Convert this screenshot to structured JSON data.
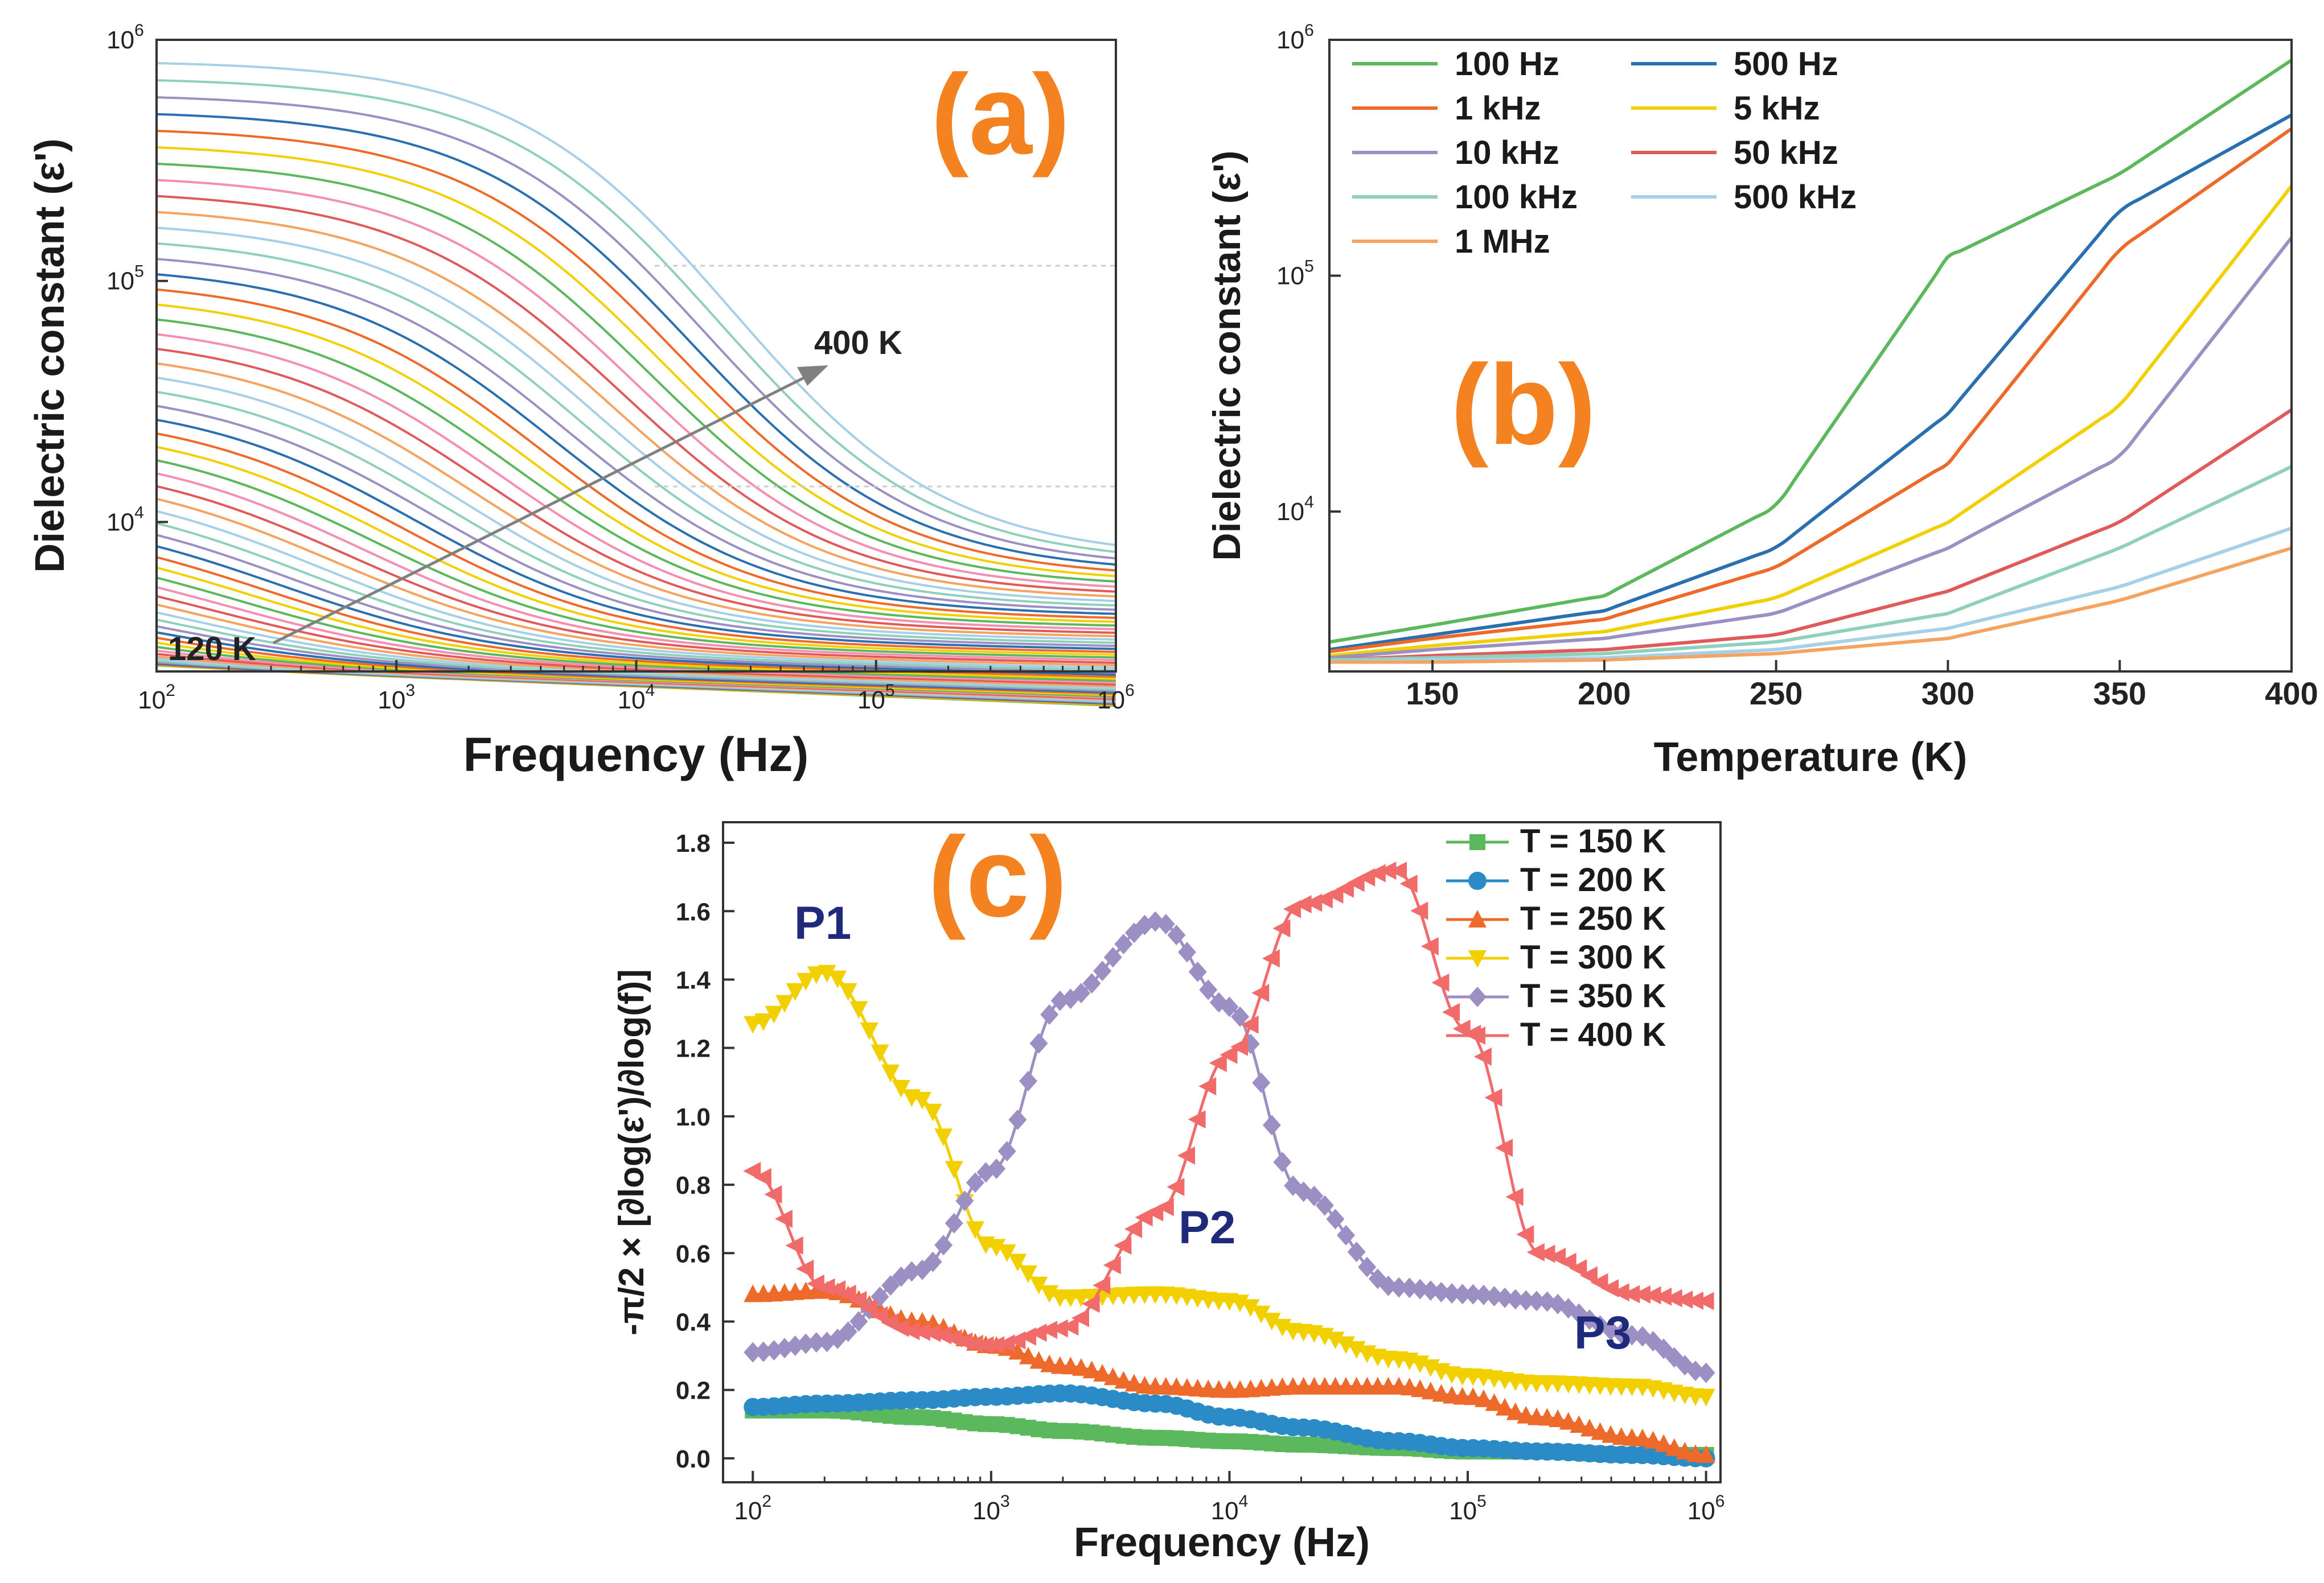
{
  "chart_data": [
    {
      "panel": "(a)",
      "type": "line",
      "xlabel": "Frequency (Hz)",
      "ylabel": "Dielectric constant (ε')",
      "xscale": "log",
      "yscale": "log",
      "xlim": [
        100,
        1000000
      ],
      "ylim": [
        2400,
        1000000
      ],
      "x_ticks": [
        "10",
        "10",
        "10",
        "10",
        "10"
      ],
      "x_tick_exponents": [
        "2",
        "3",
        "4",
        "5",
        "6"
      ],
      "y_ticks": [
        "10",
        "10",
        "10"
      ],
      "y_tick_exponents": [
        "4",
        "5",
        "6"
      ],
      "temperature_range_K": [
        120,
        400
      ],
      "curve_count": 57,
      "low_temp_label": "120 K",
      "high_temp_label": "400 K",
      "arrow_direction": "increasing temperature",
      "series_envelope": {
        "lowest_curve_120K": {
          "eps_at_100Hz": 2800,
          "eps_at_1MHz": 2500
        },
        "highest_curve_400K": {
          "eps_at_100Hz": 820000,
          "eps_at_1MHz": 7000,
          "relaxation_freq_Hz": 25000
        }
      }
    },
    {
      "panel": "(b)",
      "type": "line",
      "xlabel": "Temperature (K)",
      "ylabel": "Dielectric constant (ε')",
      "xscale": "linear",
      "yscale": "log",
      "xlim": [
        120,
        400
      ],
      "ylim": [
        2100,
        1000000
      ],
      "x_ticks": [
        "150",
        "200",
        "250",
        "300",
        "350",
        "400"
      ],
      "y_ticks": [
        "10",
        "10",
        "10"
      ],
      "y_tick_exponents": [
        "4",
        "5",
        "6"
      ],
      "legend_position": "top-left",
      "x": [
        120,
        150,
        200,
        250,
        300,
        350,
        400
      ],
      "series": [
        {
          "name": "100 Hz",
          "color": "#5cb85c",
          "values": [
            2800,
            3300,
            4400,
            10500,
            120000,
            270000,
            820000
          ]
        },
        {
          "name": "500 Hz",
          "color": "#2a6fb0",
          "values": [
            2600,
            3000,
            3800,
            7000,
            26000,
            190000,
            480000
          ]
        },
        {
          "name": "1 kHz",
          "color": "#ee6a2b",
          "values": [
            2550,
            2900,
            3500,
            5800,
            16000,
            130000,
            420000
          ]
        },
        {
          "name": "5 kHz",
          "color": "#f2d000",
          "values": [
            2450,
            2700,
            3100,
            4300,
            9000,
            28000,
            240000
          ]
        },
        {
          "name": "10 kHz",
          "color": "#9b8fc4",
          "values": [
            2400,
            2600,
            2900,
            3700,
            7000,
            17000,
            145000
          ]
        },
        {
          "name": "50 kHz",
          "color": "#e05a5a",
          "values": [
            2350,
            2450,
            2600,
            3000,
            4600,
            9000,
            27000
          ]
        },
        {
          "name": "100 kHz",
          "color": "#8fd0bb",
          "values": [
            2350,
            2400,
            2500,
            2800,
            3700,
            7000,
            15500
          ]
        },
        {
          "name": "500 kHz",
          "color": "#a6cfe8",
          "values": [
            2300,
            2350,
            2400,
            2600,
            3200,
            4800,
            8500
          ]
        },
        {
          "name": "1 MHz",
          "color": "#f4a460",
          "values": [
            2300,
            2300,
            2350,
            2500,
            2900,
            4200,
            7000
          ]
        }
      ]
    },
    {
      "panel": "(c)",
      "type": "line",
      "xlabel": "Frequency (Hz)",
      "ylabel": "-π/2 × [∂log(ε')/∂log(f)]",
      "xscale": "log",
      "yscale": "linear",
      "xlim": [
        75,
        1150000
      ],
      "ylim": [
        -0.07,
        1.86
      ],
      "x_ticks": [
        "10",
        "10",
        "10",
        "10",
        "10"
      ],
      "x_tick_exponents": [
        "2",
        "3",
        "4",
        "5",
        "6"
      ],
      "y_ticks": [
        "0.0",
        "0.2",
        "0.4",
        "0.6",
        "0.8",
        "1.0",
        "1.2",
        "1.4",
        "1.6",
        "1.8"
      ],
      "legend_position": "top-right",
      "x": [
        100,
        200,
        500,
        1000,
        2000,
        5000,
        10000,
        20000,
        50000,
        100000,
        200000,
        500000,
        1000000
      ],
      "series": [
        {
          "name": "T = 150 K",
          "color": "#5cb85c",
          "marker": "square",
          "values": [
            0.14,
            0.14,
            0.12,
            0.1,
            0.08,
            0.06,
            0.05,
            0.04,
            0.03,
            0.02,
            0.02,
            0.01,
            0.01
          ]
        },
        {
          "name": "T = 200 K",
          "color": "#2a8bc7",
          "marker": "circle",
          "values": [
            0.15,
            0.16,
            0.17,
            0.18,
            0.19,
            0.16,
            0.12,
            0.09,
            0.05,
            0.03,
            0.02,
            0.01,
            0.0
          ]
        },
        {
          "name": "T = 250 K",
          "color": "#ee6a2b",
          "marker": "triangle-up",
          "values": [
            0.48,
            0.49,
            0.4,
            0.33,
            0.27,
            0.21,
            0.2,
            0.21,
            0.21,
            0.18,
            0.12,
            0.06,
            0.01
          ]
        },
        {
          "name": "T = 300 K",
          "color": "#f2d000",
          "marker": "triangle-down",
          "values": [
            1.27,
            1.42,
            1.05,
            0.62,
            0.47,
            0.48,
            0.46,
            0.37,
            0.29,
            0.24,
            0.22,
            0.21,
            0.18
          ]
        },
        {
          "name": "T = 350 K",
          "color": "#9b8fc4",
          "marker": "diamond",
          "values": [
            0.31,
            0.34,
            0.55,
            0.84,
            1.34,
            1.57,
            1.32,
            0.78,
            0.5,
            0.48,
            0.46,
            0.36,
            0.25
          ]
        },
        {
          "name": "T = 400 K",
          "color": "#f26b6b",
          "marker": "triangle-left",
          "values": [
            0.84,
            0.5,
            0.37,
            0.33,
            0.38,
            0.72,
            1.18,
            1.62,
            1.72,
            1.25,
            0.6,
            0.48,
            0.46
          ]
        }
      ],
      "annotations": [
        "P1",
        "P2",
        "P3"
      ]
    }
  ],
  "labels": {
    "panel_a": "(a)",
    "panel_b": "(b)",
    "panel_c": "(c)"
  }
}
